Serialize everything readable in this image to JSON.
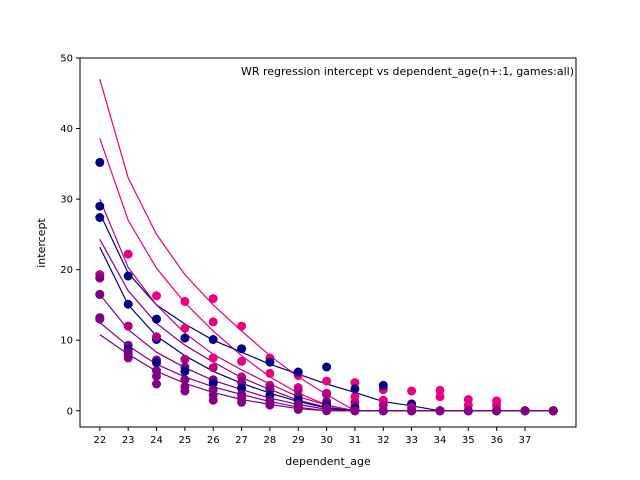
{
  "chart_data": {
    "type": "scatter",
    "title": "WR regression intercept vs dependent_age(n+:1, games:all)",
    "xlabel": "dependent_age",
    "ylabel": "intercept",
    "xlim": [
      21.3,
      38.8
    ],
    "ylim": [
      -2.3,
      50
    ],
    "x_ticks": [
      22,
      23,
      24,
      25,
      26,
      27,
      28,
      29,
      30,
      31,
      32,
      33,
      34,
      35,
      36,
      37
    ],
    "y_ticks": [
      0,
      10,
      20,
      30,
      40,
      50
    ],
    "grid": false,
    "legend": "none",
    "colors": {
      "navy": "#000080",
      "purple": "#800080",
      "magenta": "#e6007e",
      "mid1": "#7d0080",
      "mid2": "#b3007f"
    },
    "series": [
      {
        "color": "#e6007e",
        "x": [
          22,
          23,
          24,
          25,
          26,
          27,
          28,
          29,
          30,
          31,
          32,
          33,
          34,
          35,
          36,
          37,
          38
        ],
        "fit": [
          47.0,
          33.0,
          25.0,
          19.3,
          15.0,
          11.3,
          7.8,
          4.8,
          2.3,
          0,
          0,
          0,
          0,
          0,
          0,
          0,
          0
        ],
        "points": [
          [
            25,
            15.5
          ],
          [
            26,
            15.9
          ],
          [
            26,
            12.6
          ],
          [
            27,
            12.0
          ],
          [
            28,
            7.5
          ],
          [
            29,
            5.0
          ],
          [
            30,
            4.2
          ],
          [
            31,
            4.0
          ],
          [
            32,
            3.0
          ],
          [
            33,
            2.8
          ],
          [
            34,
            2.9
          ],
          [
            35,
            1.6
          ],
          [
            36,
            1.4
          ],
          [
            37,
            0
          ],
          [
            38,
            0
          ]
        ]
      },
      {
        "color": "#e6007e",
        "x": [
          22,
          23,
          24,
          25,
          26,
          27,
          28,
          29,
          30,
          31,
          32,
          33,
          34,
          35,
          36,
          37,
          38
        ],
        "fit": [
          38.6,
          27.0,
          20.2,
          15.3,
          11.3,
          7.8,
          4.8,
          2.5,
          0.8,
          0,
          0,
          0,
          0,
          0,
          0,
          0,
          0
        ],
        "points": [
          [
            23,
            22.2
          ],
          [
            24,
            16.3
          ],
          [
            25,
            11.7
          ],
          [
            26,
            7.5
          ],
          [
            27,
            7.0
          ],
          [
            28,
            5.3
          ],
          [
            29,
            3.3
          ],
          [
            30,
            2.5
          ],
          [
            31,
            2.0
          ],
          [
            32,
            1.5
          ],
          [
            33,
            1.0
          ],
          [
            34,
            2.0
          ],
          [
            35,
            0.8
          ],
          [
            36,
            0.8
          ],
          [
            37,
            0
          ],
          [
            38,
            0
          ]
        ]
      },
      {
        "color": "#000080",
        "x": [
          22,
          23,
          24,
          25,
          26,
          27,
          28,
          29,
          30,
          31,
          32,
          33,
          34,
          35,
          36,
          37,
          38
        ],
        "fit": [
          28.0,
          19.5,
          15.0,
          12.3,
          10.0,
          8.3,
          6.6,
          5.2,
          3.8,
          2.6,
          1.3,
          0.7,
          0,
          0,
          0,
          0,
          0
        ],
        "points": [
          [
            22,
            35.2
          ],
          [
            22,
            29.0
          ],
          [
            22,
            27.4
          ],
          [
            23,
            19.1
          ],
          [
            23,
            15.1
          ],
          [
            24,
            13.0
          ],
          [
            24,
            10.1
          ],
          [
            25,
            10.3
          ],
          [
            26,
            10.1
          ],
          [
            27,
            8.8
          ],
          [
            28,
            6.9
          ],
          [
            29,
            5.5
          ],
          [
            30,
            6.2
          ],
          [
            31,
            3.1
          ],
          [
            32,
            3.6
          ],
          [
            33,
            0.9
          ],
          [
            34,
            0
          ],
          [
            35,
            0
          ],
          [
            36,
            0
          ],
          [
            37,
            0
          ],
          [
            38,
            0
          ]
        ]
      },
      {
        "color": "#b3007f",
        "x": [
          22,
          23,
          24,
          25,
          26,
          27,
          28,
          29,
          30,
          31,
          32,
          33,
          34,
          35,
          36,
          37,
          38
        ],
        "fit": [
          30.0,
          20.3,
          15.0,
          11.0,
          8.0,
          5.8,
          3.8,
          2.0,
          0.8,
          0,
          0,
          0,
          0,
          0,
          0,
          0,
          0
        ],
        "points": [
          [
            22,
            19.3
          ],
          [
            23,
            12.0
          ],
          [
            24,
            10.5
          ],
          [
            25,
            7.3
          ],
          [
            26,
            6.1
          ],
          [
            27,
            4.8
          ],
          [
            28,
            3.6
          ],
          [
            29,
            2.9
          ],
          [
            30,
            2.3
          ],
          [
            31,
            1.2
          ],
          [
            32,
            0.8
          ],
          [
            33,
            0.5
          ],
          [
            34,
            0
          ],
          [
            35,
            0
          ],
          [
            36,
            0
          ],
          [
            37,
            0
          ],
          [
            38,
            0
          ]
        ]
      },
      {
        "color": "#800080",
        "x": [
          22,
          23,
          24,
          25,
          26,
          27,
          28,
          29,
          30,
          31,
          32,
          33,
          34,
          35,
          36,
          37,
          38
        ],
        "fit": [
          24.3,
          17.0,
          12.4,
          9.3,
          6.9,
          4.7,
          3.0,
          1.5,
          0.5,
          0,
          0,
          0,
          0,
          0,
          0,
          0,
          0
        ],
        "points": [
          [
            22,
            18.8
          ],
          [
            23,
            9.3
          ],
          [
            24,
            7.2
          ],
          [
            25,
            6.2
          ],
          [
            26,
            4.4
          ],
          [
            27,
            4.0
          ],
          [
            28,
            3.0
          ],
          [
            29,
            2.1
          ],
          [
            30,
            1.3
          ],
          [
            31,
            0.6
          ],
          [
            32,
            0
          ],
          [
            33,
            0
          ],
          [
            34,
            0
          ],
          [
            35,
            0
          ],
          [
            36,
            0
          ],
          [
            37,
            0
          ],
          [
            38,
            0
          ]
        ]
      },
      {
        "color": "#000080",
        "x": [
          22,
          23,
          24,
          25,
          26,
          27,
          28,
          29,
          30,
          31,
          32,
          33,
          34,
          35,
          36,
          37,
          38
        ],
        "fit": [
          23.2,
          15.0,
          10.6,
          7.8,
          5.6,
          3.9,
          2.5,
          1.3,
          0.4,
          0,
          0,
          0,
          0,
          0,
          0,
          0,
          0
        ],
        "points": [
          [
            22,
            16.5
          ],
          [
            23,
            8.7
          ],
          [
            24,
            6.8
          ],
          [
            25,
            5.6
          ],
          [
            26,
            3.9
          ],
          [
            27,
            3.2
          ],
          [
            28,
            2.2
          ],
          [
            29,
            1.5
          ],
          [
            30,
            0.8
          ],
          [
            31,
            0.3
          ],
          [
            32,
            0
          ],
          [
            33,
            0
          ],
          [
            34,
            0
          ],
          [
            35,
            0
          ],
          [
            36,
            0
          ],
          [
            37,
            0
          ],
          [
            38,
            0
          ]
        ]
      },
      {
        "color": "#7d0080",
        "x": [
          22,
          23,
          24,
          25,
          26,
          27,
          28,
          29,
          30,
          31,
          32,
          33,
          34,
          35,
          36,
          37,
          38
        ],
        "fit": [
          16.5,
          11.5,
          8.3,
          6.1,
          4.3,
          3.0,
          1.8,
          0.9,
          0.2,
          0,
          0,
          0,
          0,
          0,
          0,
          0,
          0
        ],
        "points": [
          [
            22,
            16.5
          ],
          [
            23,
            8.3
          ],
          [
            24,
            5.7
          ],
          [
            25,
            4.4
          ],
          [
            26,
            3.0
          ],
          [
            27,
            2.3
          ],
          [
            28,
            1.5
          ],
          [
            29,
            0.9
          ],
          [
            30,
            0.4
          ],
          [
            31,
            0
          ],
          [
            32,
            0
          ],
          [
            33,
            0
          ],
          [
            34,
            0
          ],
          [
            35,
            0
          ],
          [
            36,
            0
          ],
          [
            37,
            0
          ],
          [
            38,
            0
          ]
        ]
      },
      {
        "color": "#800080",
        "x": [
          22,
          23,
          24,
          25,
          26,
          27,
          28,
          29,
          30,
          31,
          32,
          33,
          34,
          35,
          36,
          37,
          38
        ],
        "fit": [
          12.5,
          9.2,
          6.6,
          4.8,
          3.4,
          2.3,
          1.3,
          0.5,
          0,
          0,
          0,
          0,
          0,
          0,
          0,
          0,
          0
        ],
        "points": [
          [
            22,
            13.2
          ],
          [
            23,
            7.9
          ],
          [
            24,
            4.9
          ],
          [
            25,
            3.4
          ],
          [
            26,
            2.2
          ],
          [
            27,
            1.8
          ],
          [
            28,
            1.1
          ],
          [
            29,
            0.6
          ],
          [
            30,
            0.2
          ],
          [
            31,
            0
          ],
          [
            32,
            0
          ],
          [
            33,
            0
          ],
          [
            34,
            0
          ],
          [
            35,
            0
          ],
          [
            36,
            0
          ],
          [
            37,
            0
          ],
          [
            38,
            0
          ]
        ]
      },
      {
        "color": "#800080",
        "x": [
          22,
          23,
          24,
          25,
          26,
          27,
          28,
          29,
          30,
          31,
          32,
          33,
          34,
          35,
          36,
          37,
          38
        ],
        "fit": [
          10.8,
          8.0,
          5.6,
          3.9,
          2.6,
          1.6,
          0.9,
          0.3,
          0,
          0,
          0,
          0,
          0,
          0,
          0,
          0,
          0
        ],
        "points": [
          [
            22,
            13.0
          ],
          [
            23,
            7.5
          ],
          [
            24,
            3.8
          ],
          [
            25,
            2.8
          ],
          [
            26,
            1.5
          ],
          [
            27,
            1.2
          ],
          [
            28,
            0.8
          ],
          [
            29,
            0.2
          ],
          [
            30,
            0
          ],
          [
            31,
            0
          ],
          [
            32,
            0
          ],
          [
            33,
            0
          ],
          [
            34,
            0
          ],
          [
            35,
            0
          ],
          [
            36,
            0
          ],
          [
            37,
            0
          ],
          [
            38,
            0
          ]
        ]
      }
    ]
  }
}
